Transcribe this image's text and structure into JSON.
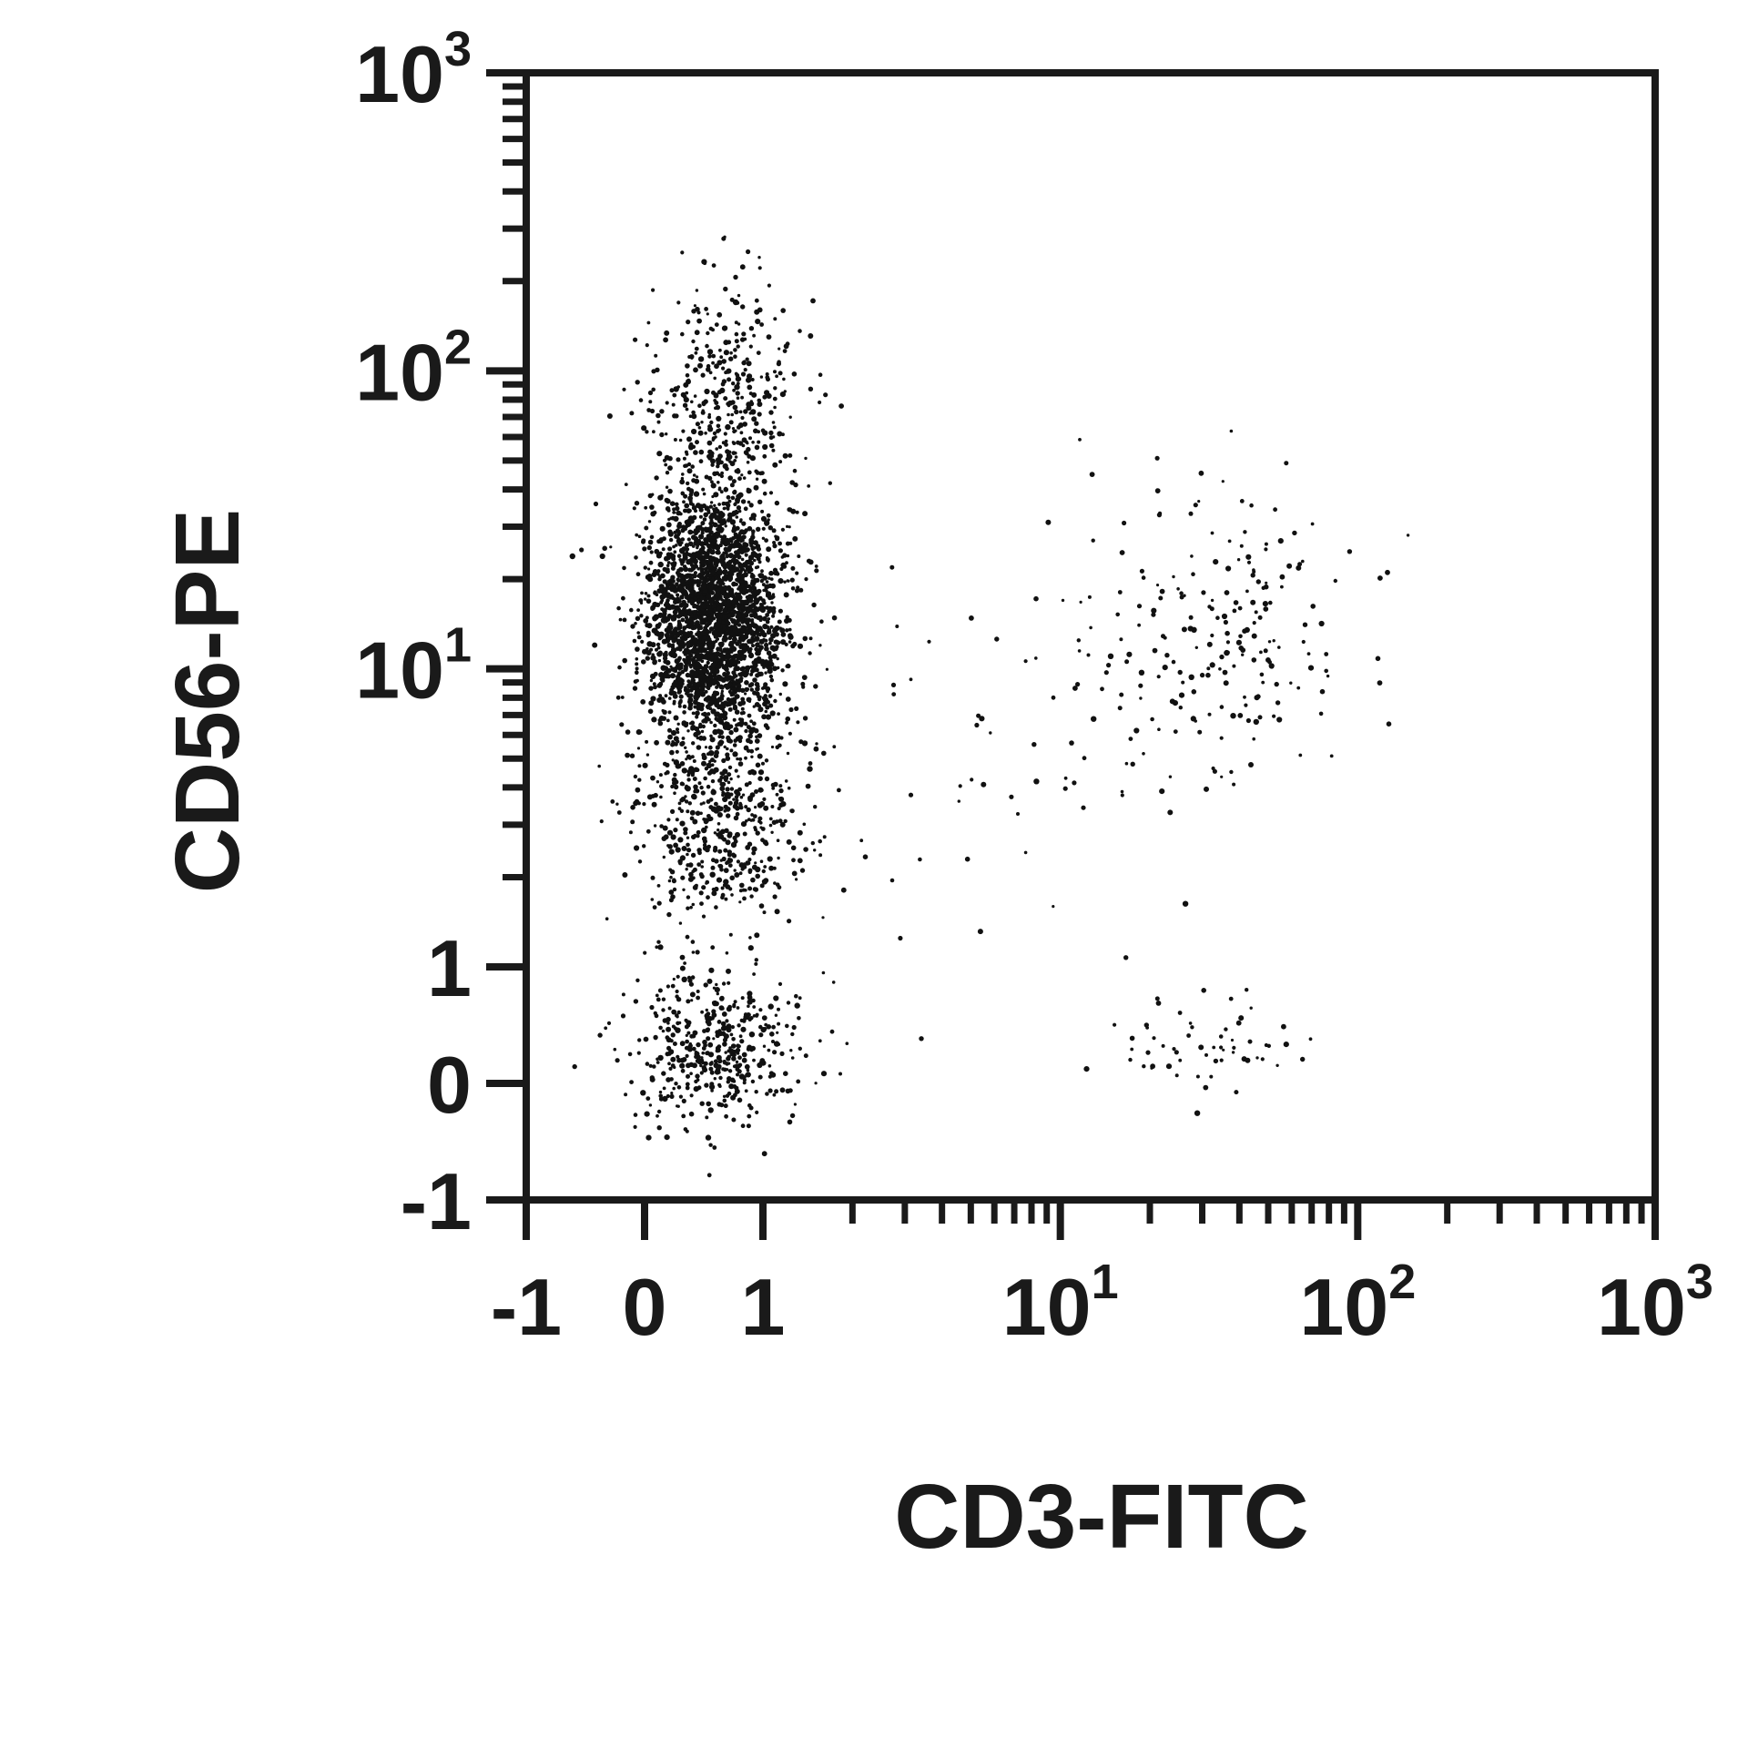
{
  "chart_data": {
    "type": "scatter",
    "title": "",
    "xlabel": "CD3-FITC",
    "ylabel": "CD56-PE",
    "x_scale": "log-biexponential",
    "y_scale": "log-biexponential",
    "xlim": [
      -1,
      1000
    ],
    "ylim": [
      -1,
      1000
    ],
    "grid": false,
    "legend": "none",
    "point_color": "#111111",
    "x_ticks": [
      {
        "value": -1,
        "base": "-1",
        "exp": ""
      },
      {
        "value": 0,
        "base": "0",
        "exp": ""
      },
      {
        "value": 1,
        "base": "1",
        "exp": ""
      },
      {
        "value": 10,
        "base": "10",
        "exp": "1"
      },
      {
        "value": 100,
        "base": "10",
        "exp": "2"
      },
      {
        "value": 1000,
        "base": "10",
        "exp": "3"
      }
    ],
    "y_ticks": [
      {
        "value": -1,
        "base": "-1",
        "exp": ""
      },
      {
        "value": 0,
        "base": "0",
        "exp": ""
      },
      {
        "value": 1,
        "base": "1",
        "exp": ""
      },
      {
        "value": 10,
        "base": "10",
        "exp": "1"
      },
      {
        "value": 100,
        "base": "10",
        "exp": "2"
      },
      {
        "value": 1000,
        "base": "10",
        "exp": "3"
      }
    ],
    "populations": [
      {
        "cd3_center": 0.6,
        "cd56_center": 15,
        "count": 2600
      },
      {
        "cd3_center": 0.6,
        "cd56_center": 3,
        "count": 500
      },
      {
        "cd3_center": 0.6,
        "cd56_center": 0.3,
        "count": 450
      },
      {
        "cd3_center": 0.7,
        "cd56_center": 80,
        "count": 350
      },
      {
        "cd3_center": 35,
        "cd56_center": 12,
        "count": 220
      },
      {
        "cd3_center": 30,
        "cd56_center": 0.3,
        "count": 60
      },
      {
        "cd3_center": 5,
        "cd56_center": 5,
        "count": 60
      }
    ]
  }
}
